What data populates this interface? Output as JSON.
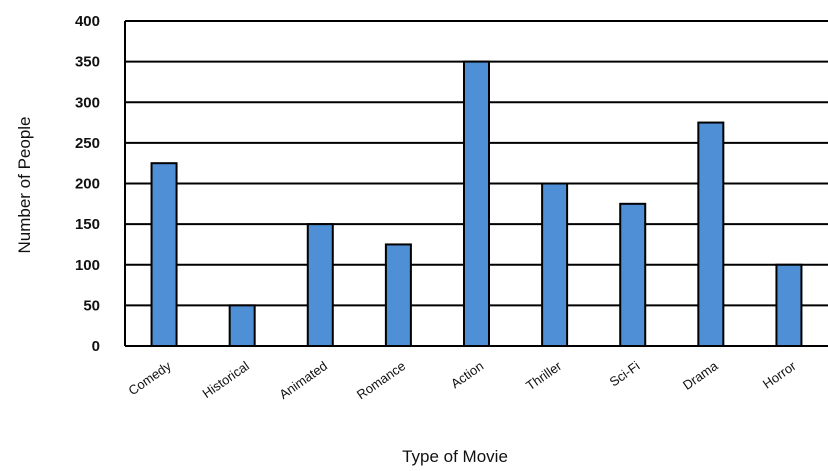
{
  "chart_data": {
    "type": "bar",
    "title": "",
    "xlabel": "Type of Movie",
    "ylabel": "Number of People",
    "ylim": [
      0,
      400
    ],
    "yticks": [
      0,
      50,
      100,
      150,
      200,
      250,
      300,
      350,
      400
    ],
    "grid": true,
    "categories": [
      "Comedy",
      "Historical",
      "Animated",
      "Romance",
      "Action",
      "Thriller",
      "Sci-Fi",
      "Drama",
      "Horror"
    ],
    "values": [
      225,
      50,
      150,
      125,
      350,
      200,
      175,
      275,
      100
    ],
    "bar_color": "#4f8fd6"
  }
}
